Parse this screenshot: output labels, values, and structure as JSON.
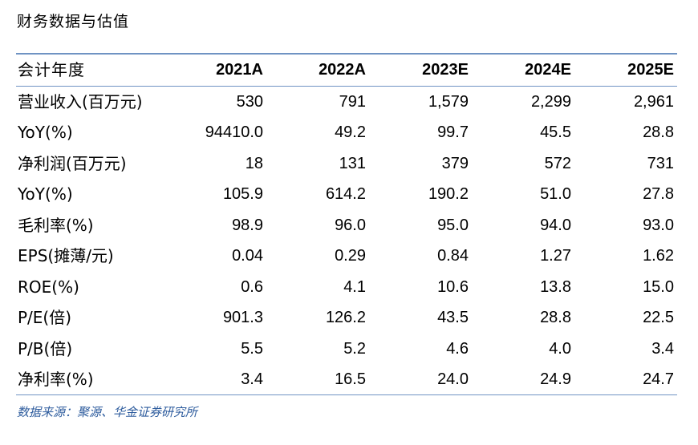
{
  "title": "财务数据与估值",
  "table": {
    "header": [
      "会计年度",
      "2021A",
      "2022A",
      "2023E",
      "2024E",
      "2025E"
    ],
    "rows": [
      [
        "营业收入(百万元)",
        "530",
        "791",
        "1,579",
        "2,299",
        "2,961"
      ],
      [
        "YoY(%)",
        "94410.0",
        "49.2",
        "99.7",
        "45.5",
        "28.8"
      ],
      [
        "净利润(百万元)",
        "18",
        "131",
        "379",
        "572",
        "731"
      ],
      [
        "YoY(%)",
        "105.9",
        "614.2",
        "190.2",
        "51.0",
        "27.8"
      ],
      [
        "毛利率(%)",
        "98.9",
        "96.0",
        "95.0",
        "94.0",
        "93.0"
      ],
      [
        "EPS(摊薄/元)",
        "0.04",
        "0.29",
        "0.84",
        "1.27",
        "1.62"
      ],
      [
        "ROE(%)",
        "0.6",
        "4.1",
        "10.6",
        "13.8",
        "15.0"
      ],
      [
        "P/E(倍)",
        "901.3",
        "126.2",
        "43.5",
        "28.8",
        "22.5"
      ],
      [
        "P/B(倍)",
        "5.5",
        "5.2",
        "4.6",
        "4.0",
        "3.4"
      ],
      [
        "净利率(%)",
        "3.4",
        "16.5",
        "24.0",
        "24.9",
        "24.7"
      ]
    ]
  },
  "source": "数据来源：聚源、华金证券研究所",
  "colors": {
    "rule": "#6f93c3",
    "source_text": "#2f5d9e"
  }
}
